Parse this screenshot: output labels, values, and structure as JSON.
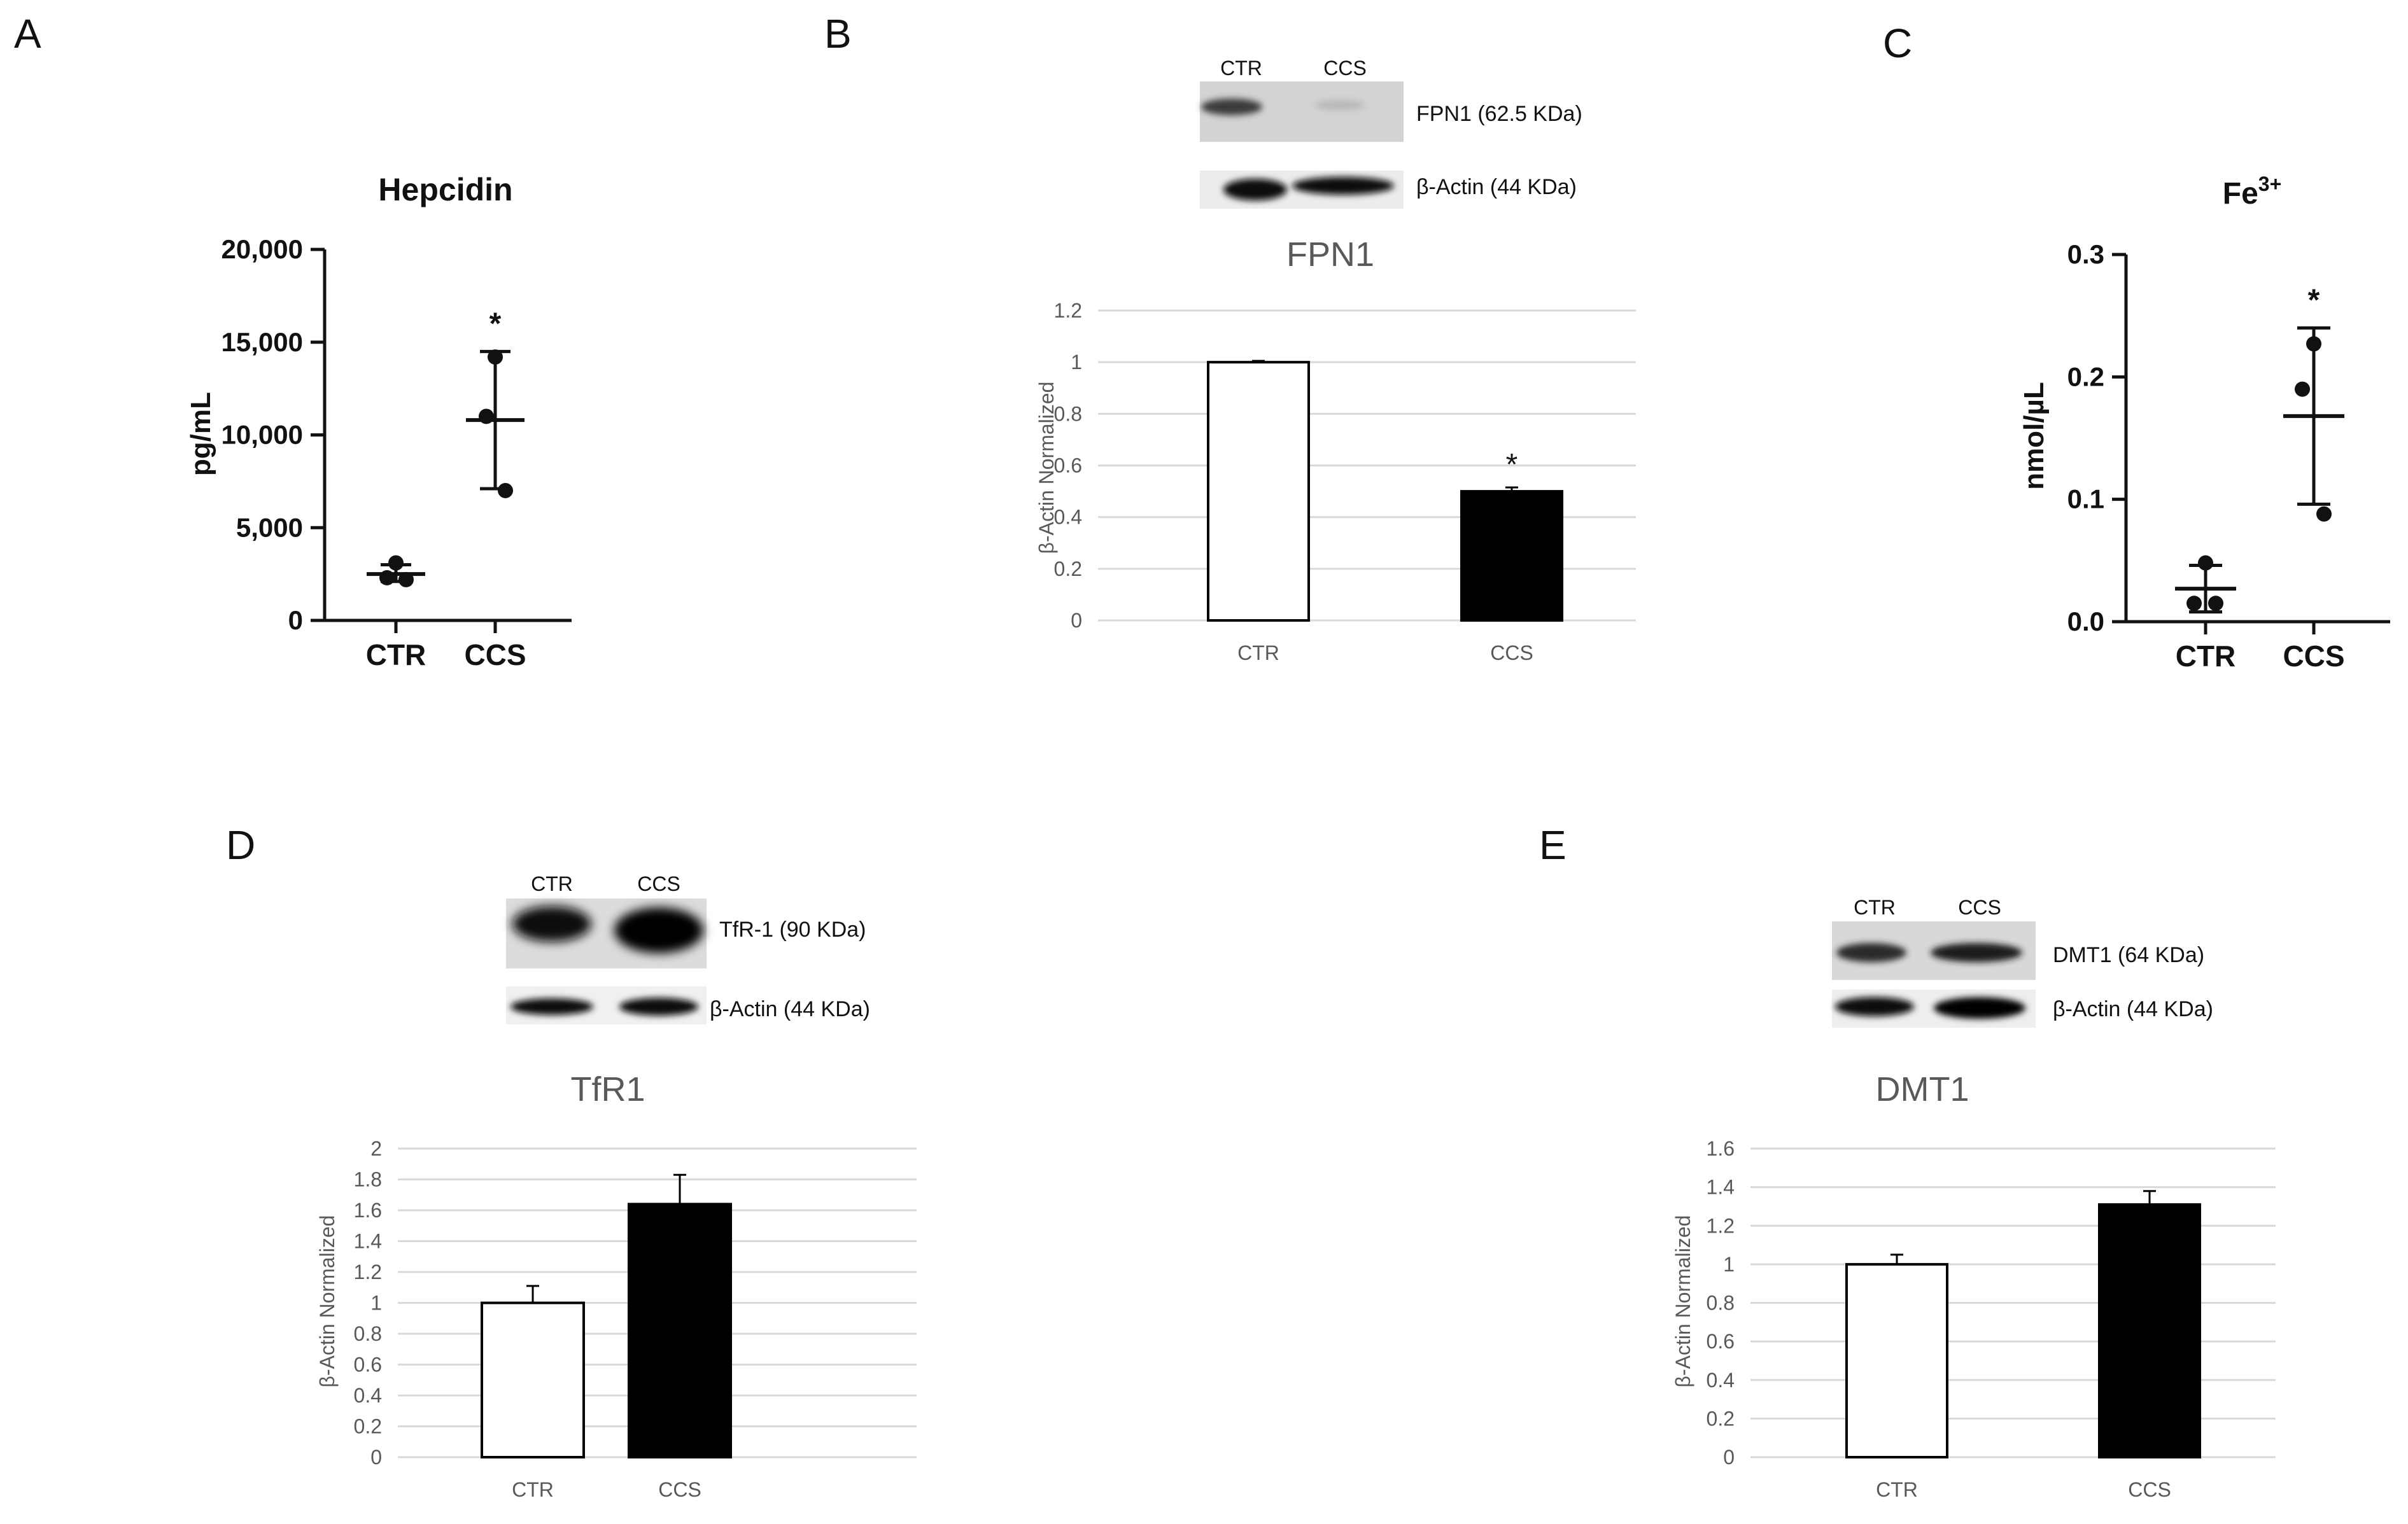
{
  "panel_letters": [
    "A",
    "B",
    "C",
    "D",
    "E"
  ],
  "blots": {
    "B": {
      "lanes": [
        "CTR",
        "CCS"
      ],
      "bands": [
        "FPN1 (62.5 KDa)",
        "β-Actin (44 KDa)"
      ]
    },
    "D": {
      "lanes": [
        "CTR",
        "CCS"
      ],
      "bands": [
        "TfR-1 (90 KDa)",
        "β-Actin (44 KDa)"
      ]
    },
    "E": {
      "lanes": [
        "CTR",
        "CCS"
      ],
      "bands": [
        "DMT1 (64 KDa)",
        "β-Actin (44 KDa)"
      ]
    }
  },
  "chart_data": [
    {
      "panel": "A",
      "type": "scatter",
      "title": "Hepcidin",
      "ylabel": "pg/mL",
      "categories": [
        "CTR",
        "CCS"
      ],
      "ylim": [
        0,
        20000
      ],
      "yticks": [
        0,
        5000,
        10000,
        15000,
        20000
      ],
      "ytick_labels": [
        "0",
        "5,000",
        "10,000",
        "15,000",
        "20,000"
      ],
      "series": [
        {
          "category": "CTR",
          "points": [
            3100,
            2300,
            2200
          ],
          "mean": 2500,
          "sd_low": 2100,
          "sd_high": 3000
        },
        {
          "category": "CCS",
          "points": [
            14200,
            11000,
            7000
          ],
          "mean": 10800,
          "sd_low": 7100,
          "sd_high": 14500
        }
      ],
      "annotations": [
        {
          "category": "CCS",
          "text": "*"
        }
      ]
    },
    {
      "panel": "B",
      "type": "bar",
      "title": "FPN1",
      "ylabel": "β-Actin Normalized",
      "categories": [
        "CTR",
        "CCS"
      ],
      "values": [
        1.0,
        0.5
      ],
      "errors": [
        0.005,
        0.015
      ],
      "ylim": [
        0,
        1.2
      ],
      "yticks": [
        0,
        0.2,
        0.4,
        0.6,
        0.8,
        1,
        1.2
      ],
      "ytick_labels": [
        "0",
        "0.2",
        "0.4",
        "0.6",
        "0.8",
        "1",
        "1.2"
      ],
      "bar_colors": [
        "#ffffff",
        "#000000"
      ],
      "annotations": [
        {
          "category": "CCS",
          "text": "*"
        }
      ]
    },
    {
      "panel": "C",
      "type": "scatter",
      "title": "Fe",
      "title_sup": "3+",
      "ylabel": "nmol/µL",
      "categories": [
        "CTR",
        "CCS"
      ],
      "ylim": [
        0,
        0.3
      ],
      "yticks": [
        0,
        0.1,
        0.2,
        0.3
      ],
      "ytick_labels": [
        "0.0",
        "0.1",
        "0.2",
        "0.3"
      ],
      "series": [
        {
          "category": "CTR",
          "points": [
            0.048,
            0.015,
            0.015
          ],
          "mean": 0.027,
          "sd_low": 0.008,
          "sd_high": 0.046
        },
        {
          "category": "CCS",
          "points": [
            0.227,
            0.19,
            0.088
          ],
          "mean": 0.168,
          "sd_low": 0.096,
          "sd_high": 0.24
        }
      ],
      "annotations": [
        {
          "category": "CCS",
          "text": "*"
        }
      ]
    },
    {
      "panel": "D",
      "type": "bar",
      "title": "TfR1",
      "ylabel": "β-Actin Normalized",
      "categories": [
        "CTR",
        "CCS"
      ],
      "values": [
        1.0,
        1.64
      ],
      "errors": [
        0.11,
        0.19
      ],
      "ylim": [
        0,
        2
      ],
      "yticks": [
        0,
        0.2,
        0.4,
        0.6,
        0.8,
        1,
        1.2,
        1.4,
        1.6,
        1.8,
        2
      ],
      "ytick_labels": [
        "0",
        "0.2",
        "0.4",
        "0.6",
        "0.8",
        "1",
        "1.2",
        "1.4",
        "1.6",
        "1.8",
        "2"
      ],
      "bar_colors": [
        "#ffffff",
        "#000000"
      ]
    },
    {
      "panel": "E",
      "type": "bar",
      "title": "DMT1",
      "ylabel": "β-Actin Normalized",
      "categories": [
        "CTR",
        "CCS"
      ],
      "values": [
        1.0,
        1.31
      ],
      "errors": [
        0.05,
        0.07
      ],
      "ylim": [
        0,
        1.6
      ],
      "yticks": [
        0,
        0.2,
        0.4,
        0.6,
        0.8,
        1,
        1.2,
        1.4,
        1.6
      ],
      "ytick_labels": [
        "0",
        "0.2",
        "0.4",
        "0.6",
        "0.8",
        "1",
        "1.2",
        "1.4",
        "1.6"
      ],
      "bar_colors": [
        "#ffffff",
        "#000000"
      ]
    }
  ]
}
